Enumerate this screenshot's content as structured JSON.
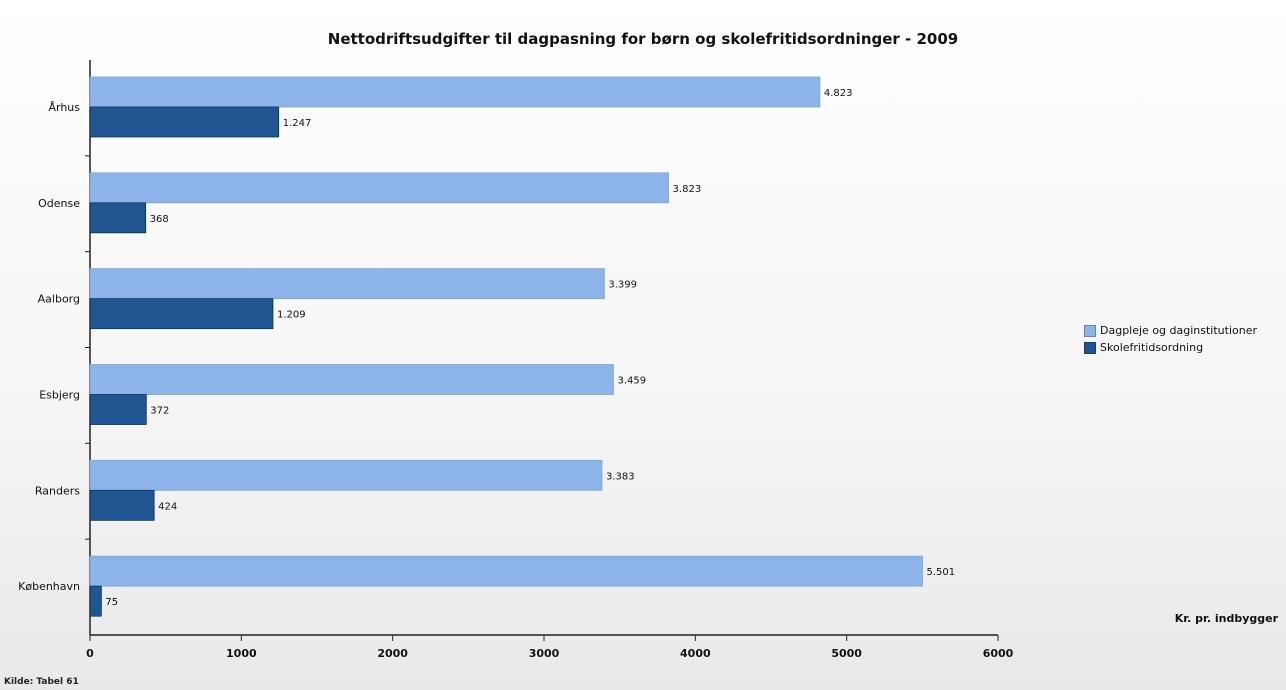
{
  "chart_data": {
    "type": "bar",
    "orientation": "horizontal",
    "title": "Nettodriftsudgifter til dagpasning for børn og skolefritidsordninger - 2009",
    "xlabel": "Kr. pr. indbygger",
    "ylabel": "",
    "categories": [
      "Århus",
      "Odense",
      "Aalborg",
      "Esbjerg",
      "Randers",
      "København"
    ],
    "series": [
      {
        "name": "Dagpleje og daginstitutioner",
        "color": "#8db4e8",
        "values": [
          4823,
          3823,
          3399,
          3459,
          3383,
          5501
        ],
        "labels": [
          "4.823",
          "3.823",
          "3.399",
          "3.459",
          "3.383",
          "5.501"
        ]
      },
      {
        "name": "Skolefritidsordning",
        "color": "#1f5590",
        "values": [
          1247,
          368,
          1209,
          372,
          424,
          75
        ],
        "labels": [
          "1.247",
          "368",
          "1.209",
          "372",
          "424",
          "75"
        ]
      }
    ],
    "xlim": [
      0,
      6000
    ],
    "xticks": [
      0,
      1000,
      2000,
      3000,
      4000,
      5000,
      6000
    ],
    "xtick_labels": [
      "0",
      "1000",
      "2000",
      "3000",
      "4000",
      "5000",
      "6000"
    ],
    "grid": false,
    "legend_position": "right"
  },
  "source_note": "Kilde: Tabel 61"
}
